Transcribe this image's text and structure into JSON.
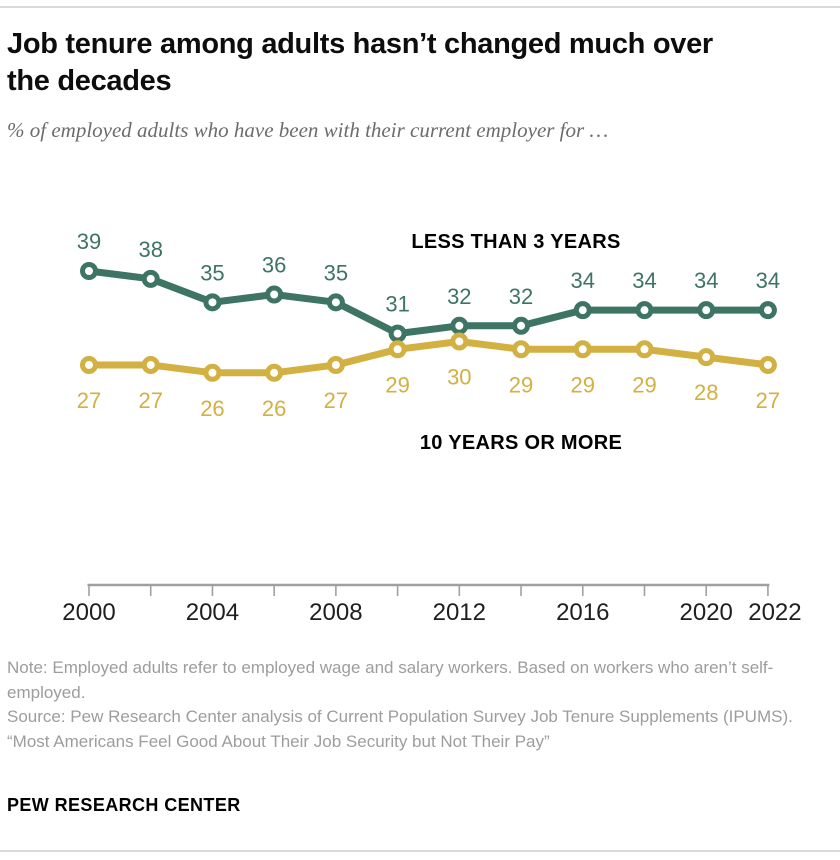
{
  "header": {
    "title_lines": [
      "Job tenure among adults hasn’t changed much over",
      "the decades"
    ],
    "subtitle": "% of employed adults who have been with their current employer for …"
  },
  "chart_data": {
    "type": "line",
    "x": [
      2000,
      2002,
      2004,
      2006,
      2008,
      2010,
      2012,
      2014,
      2016,
      2018,
      2020,
      2022
    ],
    "x_axis": {
      "labeled_years": [
        2000,
        2004,
        2008,
        2012,
        2016,
        2020,
        2022
      ]
    },
    "y_axis": {
      "visible": false
    },
    "grid": false,
    "value_labels_shown": true,
    "series": [
      {
        "name": "LESS THAN 3 YEARS",
        "color": "#3d7464",
        "value_label_position": "above",
        "values": [
          39,
          38,
          35,
          36,
          35,
          31,
          32,
          32,
          34,
          34,
          34,
          34
        ]
      },
      {
        "name": "10 YEARS OR MORE",
        "color": "#d2b041",
        "value_label_position": "below",
        "values": [
          27,
          27,
          26,
          26,
          27,
          29,
          30,
          29,
          29,
          29,
          28,
          27
        ]
      }
    ]
  },
  "footer": {
    "note": "Note: Employed adults refer to employed wage and salary workers. Based on workers who aren’t self-employed.",
    "source": "Source: Pew Research Center analysis of Current Population Survey Job Tenure Supplements (IPUMS).",
    "report": "“Most Americans Feel Good About Their Job Security but Not Their Pay”",
    "brand": "PEW RESEARCH CENTER"
  },
  "colors": {
    "green": "#3d7464",
    "gold": "#d2b041",
    "axis": "#a0a0a0",
    "divider": "#d9d9d9",
    "year_label": "#1f1f1f",
    "series_label": "#000000",
    "note_text": "#9d9d9d",
    "subtitle_text": "#6c6c6c"
  }
}
